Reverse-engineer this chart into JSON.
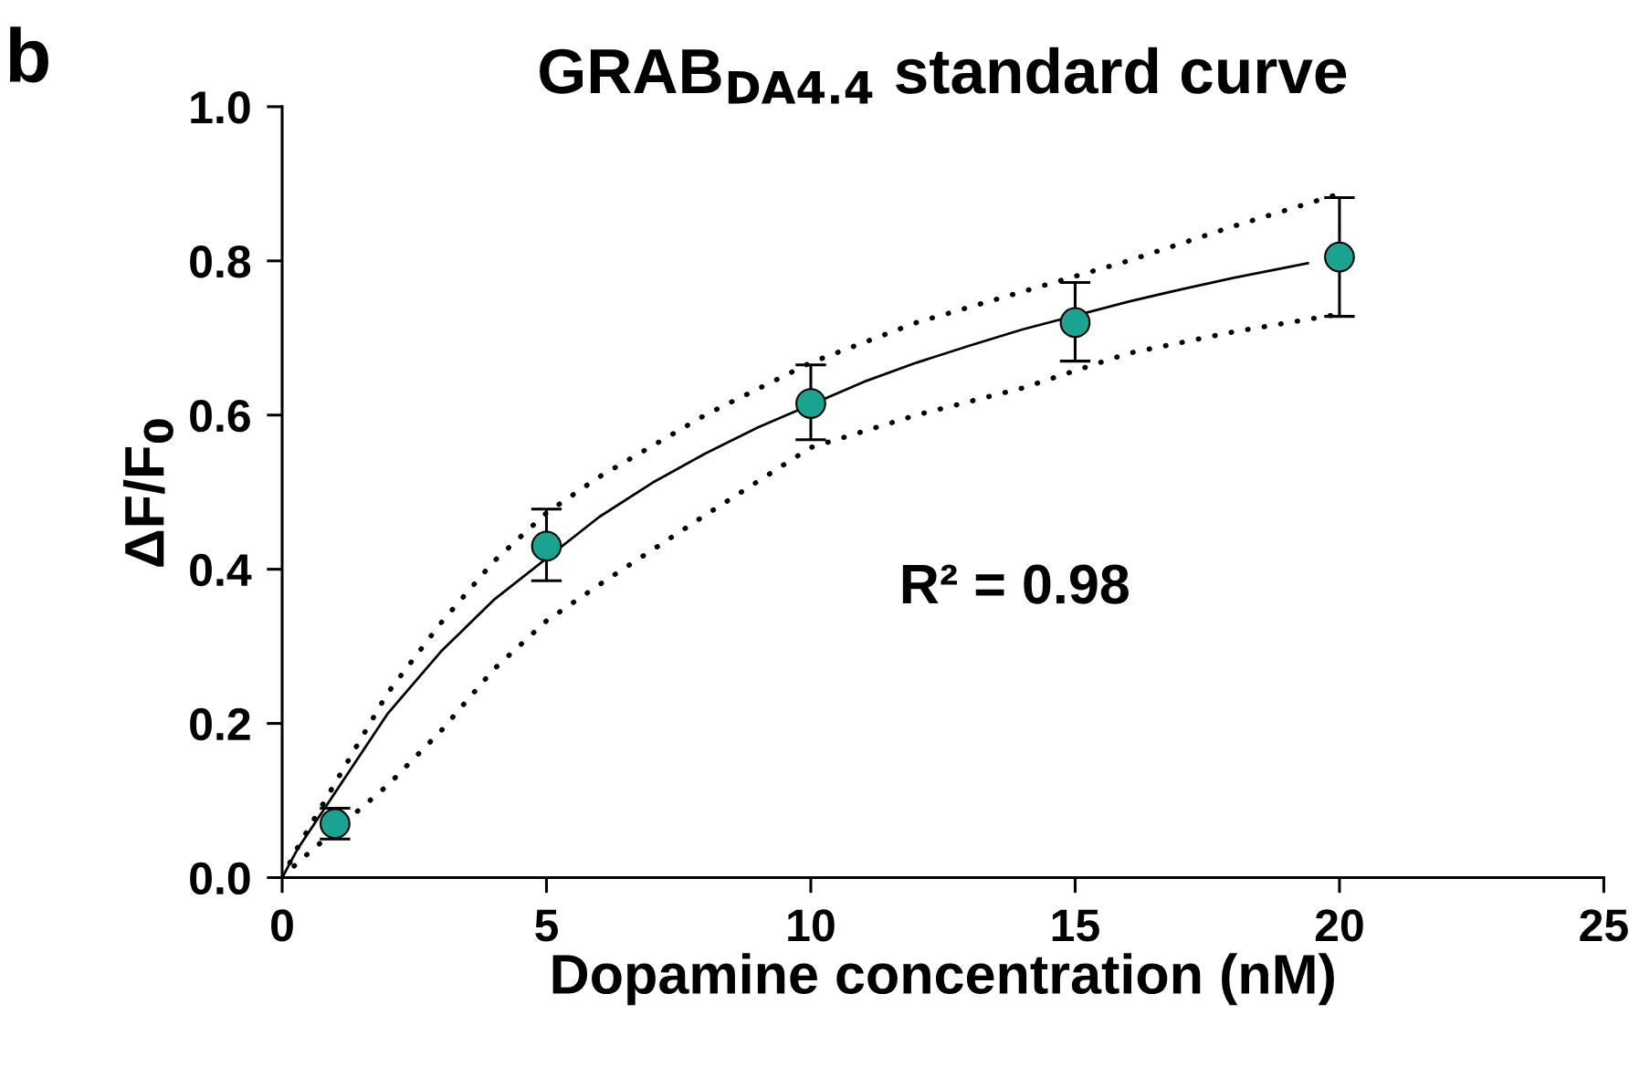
{
  "chart_data": {
    "type": "scatter",
    "title": "GRAB$_{DA4.4}$ standard curve",
    "xlabel": "Dopamine concentration (nM)",
    "ylabel": "ΔF/F$_{0}$",
    "annotations": [
      "b",
      "R² = 0.98"
    ],
    "xlim": [
      0,
      25
    ],
    "xticks": [
      0,
      5,
      10,
      15,
      20,
      25
    ],
    "ylim": [
      0,
      1.0
    ],
    "yticks": [
      {
        "value": 0,
        "label": "0.0"
      },
      0.2,
      0.4,
      0.6,
      0.8,
      {
        "value": 1.0,
        "label": "1.0"
      }
    ],
    "grid": false,
    "legend": false,
    "series": [
      {
        "type": "line",
        "color": "#000000",
        "line_style": "dotted",
        "marker": "none",
        "x": [
          0,
          0.3,
          2,
          3,
          4,
          5,
          6,
          8,
          10,
          12,
          14,
          16,
          18,
          20
        ],
        "values": [
          0,
          0.04,
          0.24,
          0.33,
          0.41,
          0.473,
          0.52,
          0.6,
          0.668,
          0.72,
          0.76,
          0.8,
          0.845,
          0.887
        ]
      },
      {
        "type": "line",
        "color": "#000000",
        "line_style": "dotted",
        "marker": "none",
        "x": [
          0,
          0.3,
          2,
          3,
          4,
          5,
          6,
          8,
          10,
          12,
          14,
          16,
          18,
          20
        ],
        "values": [
          0,
          0.02,
          0.12,
          0.19,
          0.27,
          0.333,
          0.38,
          0.47,
          0.558,
          0.6,
          0.635,
          0.68,
          0.708,
          0.731
        ]
      },
      {
        "type": "line",
        "color": "#000000",
        "line_style": "solid",
        "marker": "none",
        "x": [
          0,
          0.3,
          2,
          3,
          4,
          6,
          7,
          8,
          9,
          11,
          12,
          13,
          14,
          16,
          17,
          18,
          19.4
        ],
        "values": [
          0,
          0.038,
          0.213,
          0.293,
          0.36,
          0.468,
          0.512,
          0.55,
          0.584,
          0.643,
          0.668,
          0.69,
          0.711,
          0.747,
          0.763,
          0.778,
          0.797
        ]
      },
      {
        "color": "#1aa391",
        "marker": "circle",
        "x": [
          1,
          5,
          10,
          15,
          20
        ],
        "values": [
          0.07,
          0.43,
          0.615,
          0.72,
          0.805
        ],
        "errors": [
          [
            0.05,
            0.09
          ],
          [
            0.385,
            0.478
          ],
          [
            0.568,
            0.665
          ],
          [
            0.67,
            0.772
          ],
          [
            0.728,
            0.882
          ]
        ]
      }
    ]
  }
}
